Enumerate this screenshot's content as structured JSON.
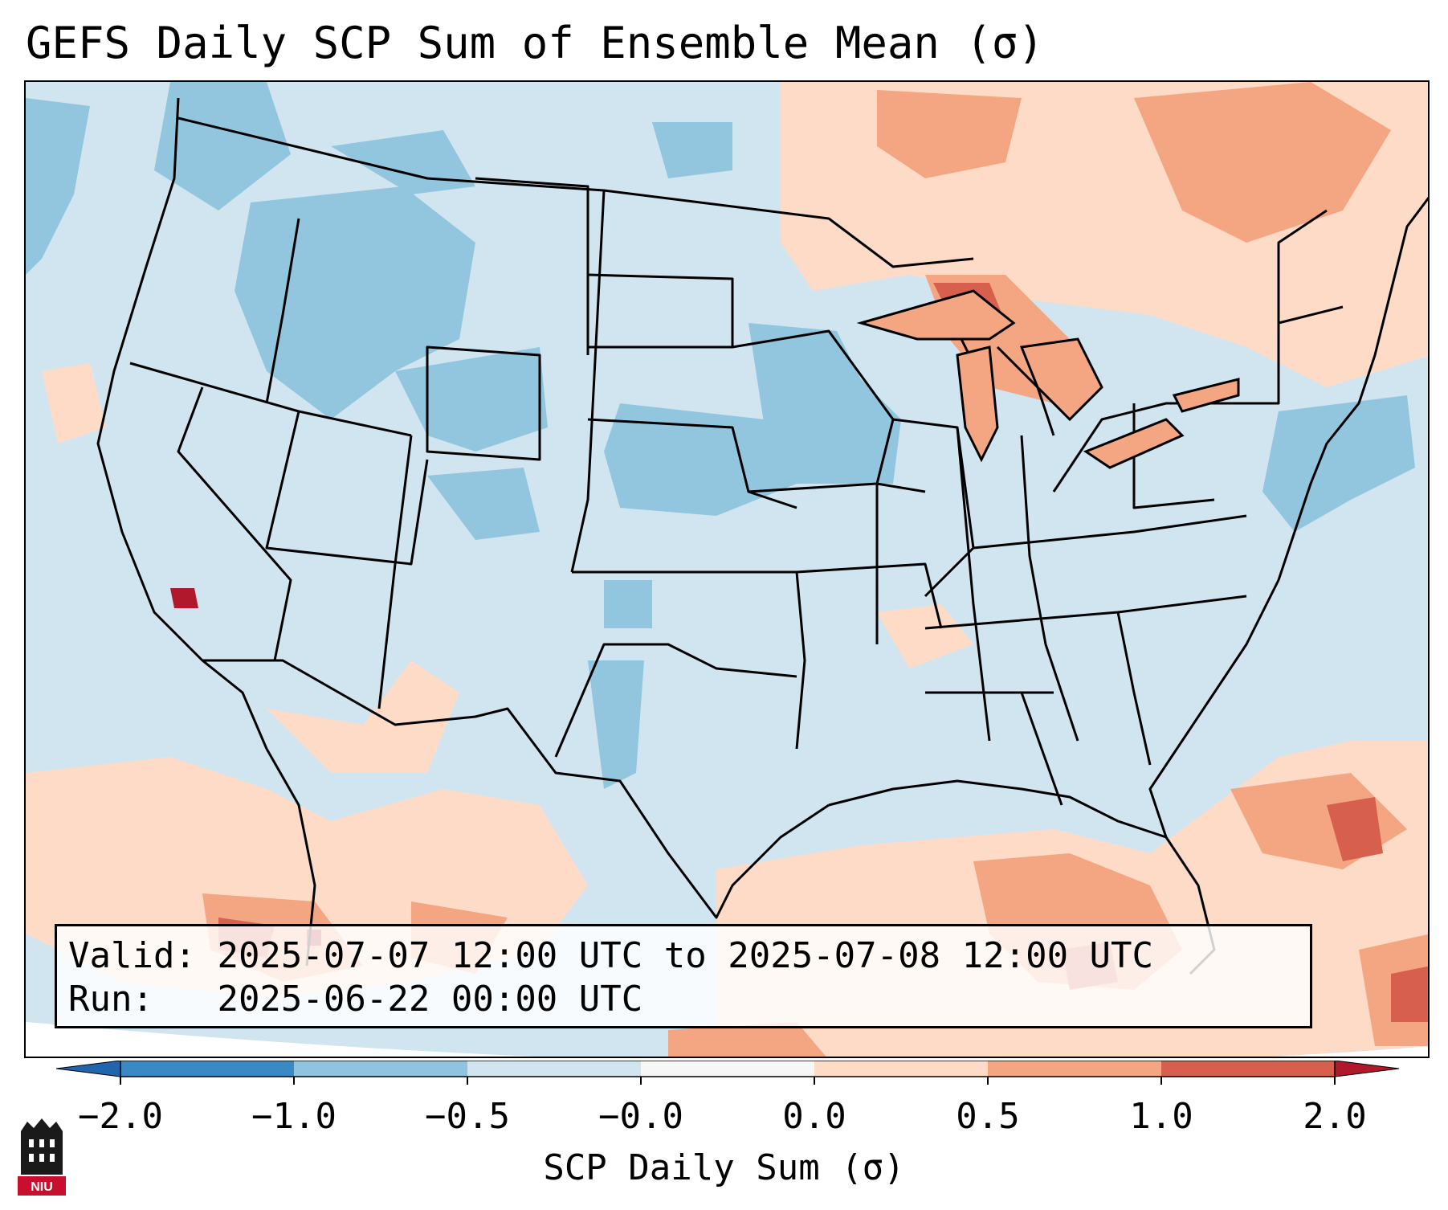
{
  "title": "GEFS Daily SCP Sum of Ensemble Mean (σ)",
  "info": {
    "valid_label": "Valid:",
    "valid_value": "2025-07-07 12:00 UTC to 2025-07-08 12:00 UTC",
    "run_label": "Run:",
    "run_value": "2025-06-22 00:00 UTC"
  },
  "colorbar": {
    "label": "SCP Daily Sum (σ)",
    "ticks": [
      "−2.0",
      "−1.0",
      "−0.5",
      "−0.0",
      "0.0",
      "0.5",
      "1.0",
      "2.0"
    ],
    "colors": [
      "#3a88c4",
      "#8fc3de",
      "#d1e5f0",
      "#f7f7f7",
      "#fddbc7",
      "#f4a582",
      "#d6604d",
      "#b2182b"
    ]
  },
  "map": {
    "region": "Continental United States",
    "boundaries": "states"
  },
  "logo": {
    "text": "NIU"
  }
}
